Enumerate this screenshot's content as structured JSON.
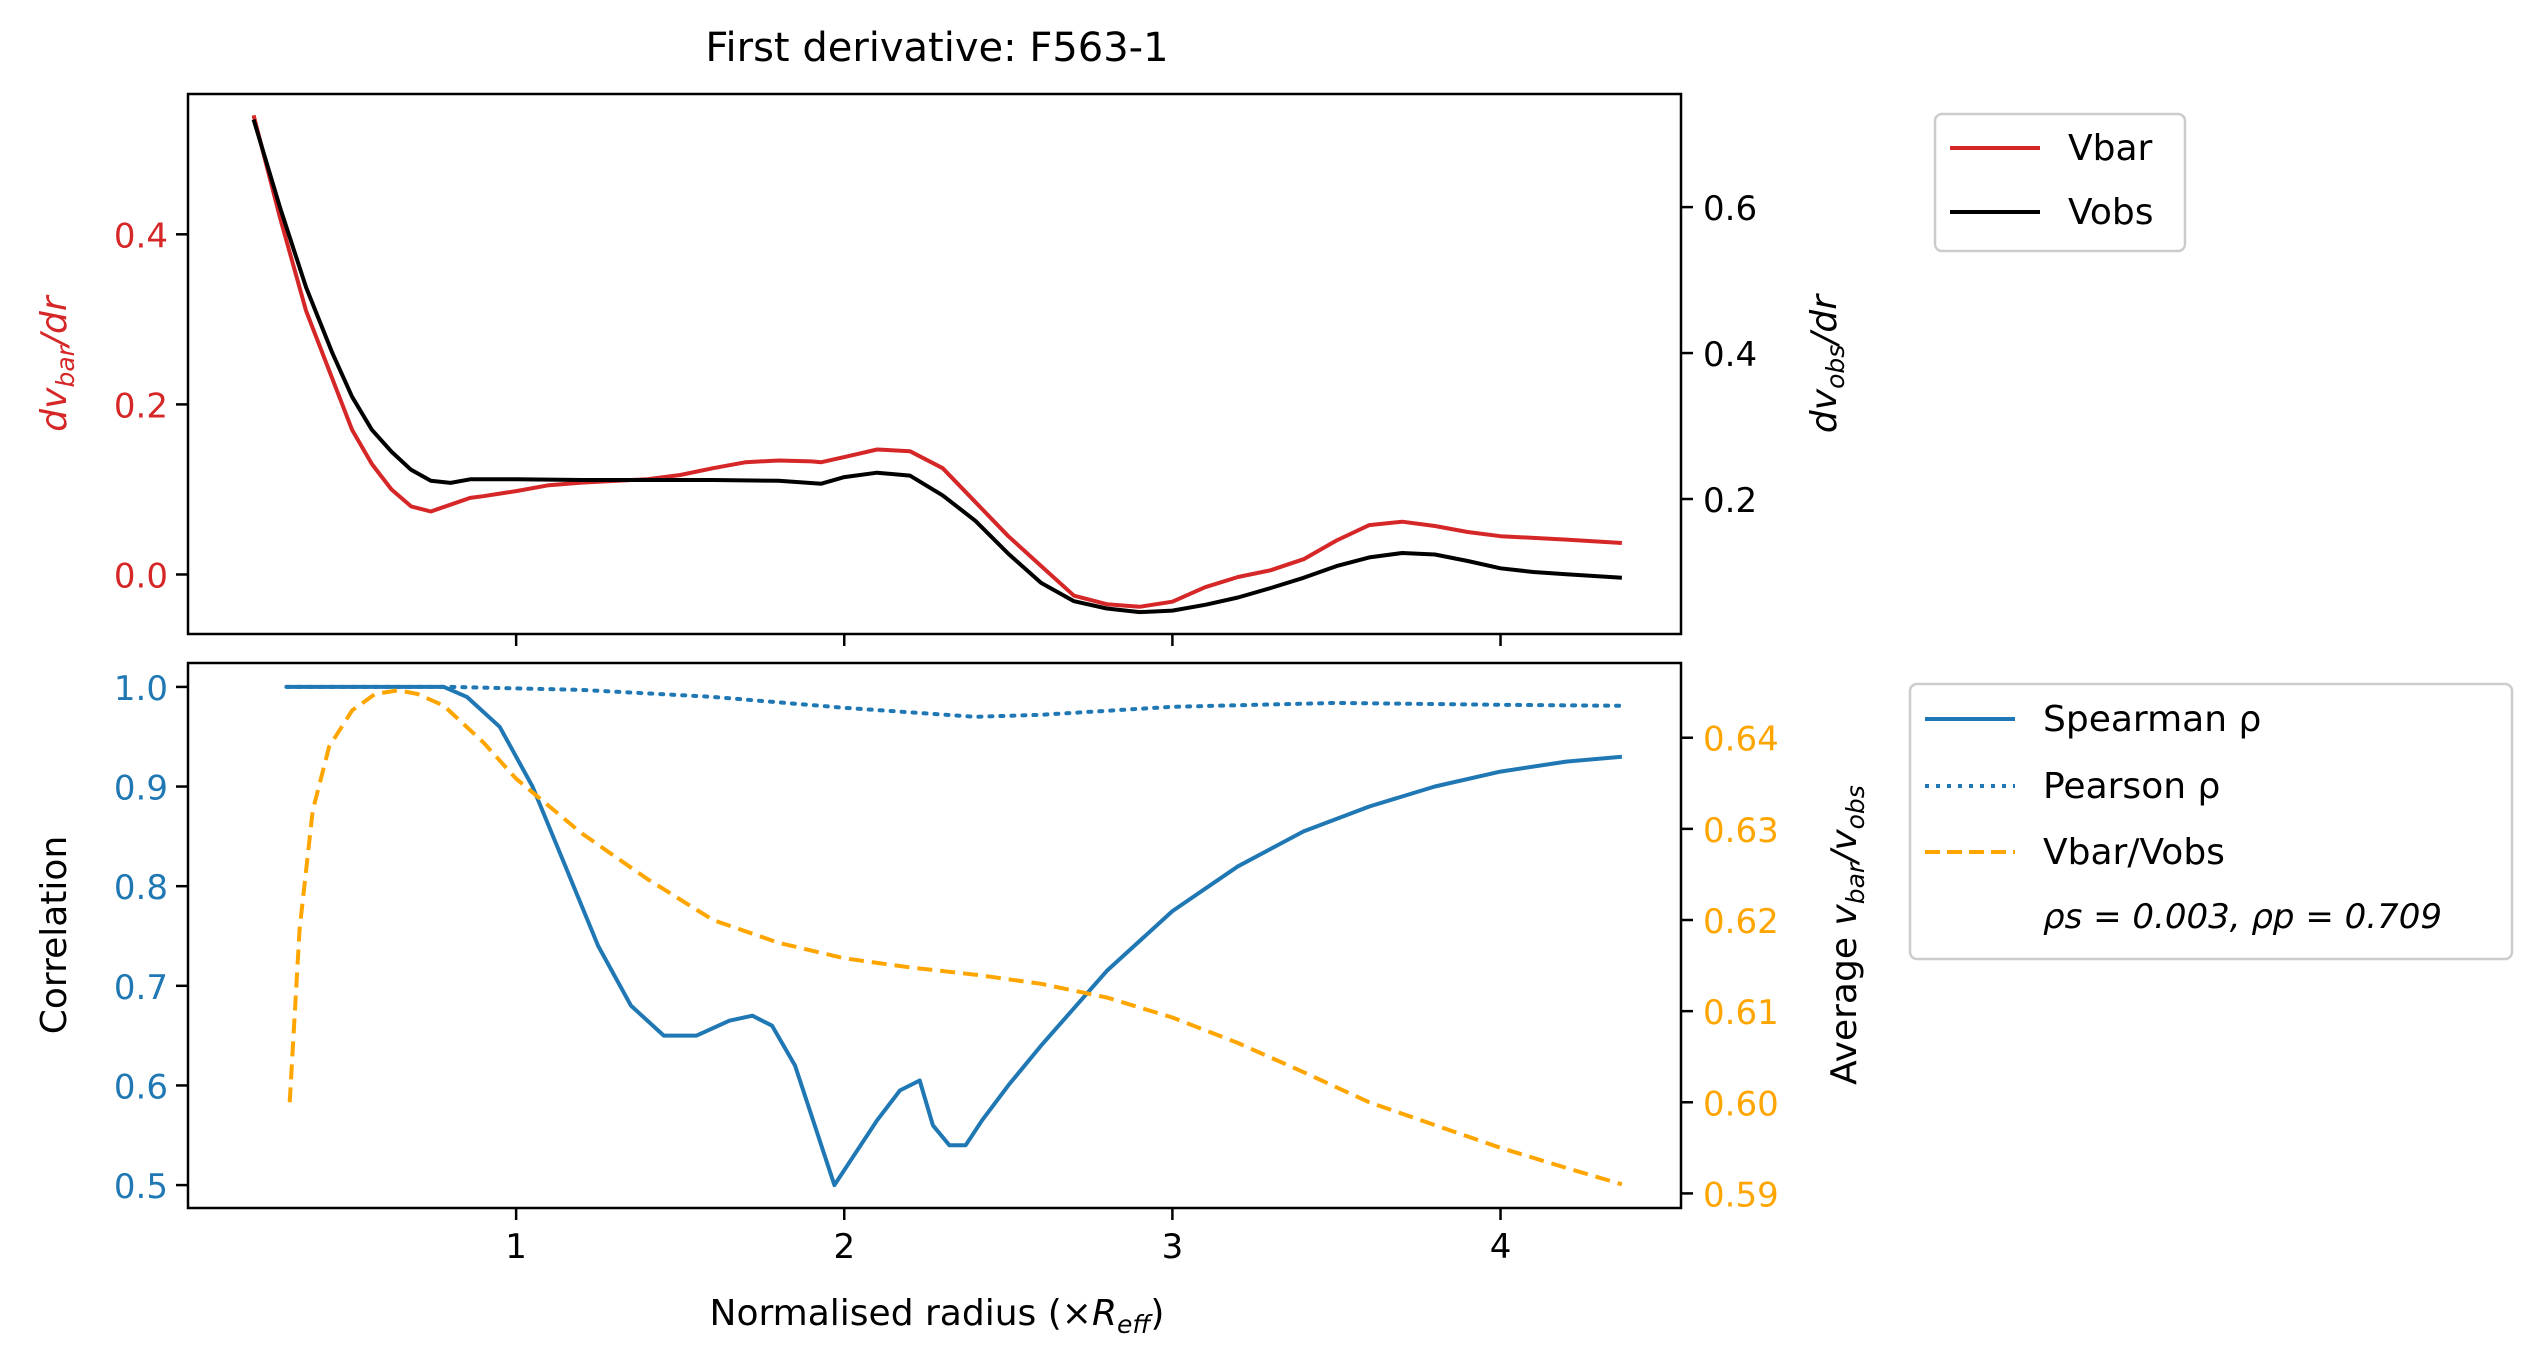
{
  "figure_title": "First derivative: F563-1",
  "colors": {
    "vbar": "#d62728",
    "vobs": "#000000",
    "spearman": "#1f77b4",
    "pearson": "#1f77b4",
    "ratio": "#ffa500",
    "axis": "#000000"
  },
  "top_legend": [
    "Vbar",
    "Vobs"
  ],
  "bottom_legend": {
    "entries": [
      "Spearman ρ",
      "Pearson ρ",
      "Vbar/Vobs"
    ],
    "stats_text": "ρs = 0.003, ρp = 0.709"
  },
  "chart_data": [
    {
      "type": "line",
      "title": "First derivative: F563-1",
      "xlim": [
        0,
        4.55
      ],
      "xticks": [
        1,
        2,
        3,
        4
      ],
      "left_axis": {
        "label": "dv_bar/dr",
        "ylim": [
          -0.07,
          0.565
        ],
        "ticks": [
          0.0,
          0.2,
          0.4
        ],
        "tick_labels": [
          "0.0",
          "0.2",
          "0.4"
        ]
      },
      "right_axis": {
        "label": "dv_obs/dr",
        "ylim": [
          0.015,
          0.755
        ],
        "ticks": [
          0.2,
          0.4,
          0.6
        ],
        "tick_labels": [
          "0.2",
          "0.4",
          "0.6"
        ]
      },
      "series": [
        {
          "name": "Vbar",
          "axis": "left",
          "x": [
            0.2,
            0.28,
            0.36,
            0.44,
            0.5,
            0.56,
            0.62,
            0.68,
            0.74,
            0.8,
            0.86,
            0.9,
            1.0,
            1.1,
            1.2,
            1.3,
            1.4,
            1.5,
            1.6,
            1.7,
            1.8,
            1.9,
            1.93,
            2.0,
            2.1,
            2.2,
            2.3,
            2.4,
            2.5,
            2.6,
            2.7,
            2.8,
            2.9,
            3.0,
            3.1,
            3.2,
            3.3,
            3.4,
            3.5,
            3.6,
            3.7,
            3.8,
            3.9,
            4.0,
            4.1,
            4.2,
            4.37
          ],
          "y": [
            0.54,
            0.42,
            0.31,
            0.23,
            0.17,
            0.13,
            0.1,
            0.08,
            0.074,
            0.082,
            0.09,
            0.092,
            0.098,
            0.105,
            0.108,
            0.11,
            0.112,
            0.117,
            0.125,
            0.132,
            0.134,
            0.133,
            0.132,
            0.138,
            0.147,
            0.145,
            0.125,
            0.085,
            0.045,
            0.01,
            -0.025,
            -0.035,
            -0.038,
            -0.032,
            -0.015,
            -0.003,
            0.005,
            0.018,
            0.04,
            0.058,
            0.062,
            0.057,
            0.05,
            0.045,
            0.043,
            0.041,
            0.037
          ]
        },
        {
          "name": "Vobs",
          "axis": "right",
          "x": [
            0.2,
            0.28,
            0.36,
            0.44,
            0.5,
            0.56,
            0.62,
            0.68,
            0.74,
            0.8,
            0.86,
            0.9,
            1.0,
            1.2,
            1.4,
            1.6,
            1.8,
            1.93,
            2.0,
            2.1,
            2.2,
            2.3,
            2.4,
            2.5,
            2.6,
            2.7,
            2.8,
            2.9,
            3.0,
            3.1,
            3.2,
            3.3,
            3.4,
            3.5,
            3.6,
            3.7,
            3.8,
            3.9,
            4.0,
            4.1,
            4.2,
            4.37
          ],
          "y": [
            0.72,
            0.6,
            0.49,
            0.4,
            0.34,
            0.295,
            0.265,
            0.24,
            0.225,
            0.222,
            0.227,
            0.227,
            0.227,
            0.226,
            0.226,
            0.226,
            0.225,
            0.221,
            0.23,
            0.236,
            0.232,
            0.205,
            0.17,
            0.125,
            0.085,
            0.06,
            0.05,
            0.045,
            0.047,
            0.055,
            0.065,
            0.078,
            0.092,
            0.108,
            0.12,
            0.126,
            0.124,
            0.115,
            0.105,
            0.1,
            0.097,
            0.092
          ]
        }
      ]
    },
    {
      "type": "line",
      "xlabel": "Normalised radius (×R_eff)",
      "xlim": [
        0,
        4.55
      ],
      "xticks": [
        1,
        2,
        3,
        4
      ],
      "xtick_labels": [
        "1",
        "2",
        "3",
        "4"
      ],
      "left_axis": {
        "label": "Correlation",
        "ylim": [
          0.477,
          1.024
        ],
        "ticks": [
          0.5,
          0.6,
          0.7,
          0.8,
          0.9,
          1.0
        ],
        "tick_labels": [
          "0.5",
          "0.6",
          "0.7",
          "0.8",
          "0.9",
          "1.0"
        ]
      },
      "right_axis": {
        "label": "Average v_bar/v_obs",
        "ylim": [
          0.5884,
          0.6482
        ],
        "ticks": [
          0.59,
          0.6,
          0.61,
          0.62,
          0.63,
          0.64
        ],
        "tick_labels": [
          "0.59",
          "0.60",
          "0.61",
          "0.62",
          "0.63",
          "0.64"
        ]
      },
      "series": [
        {
          "name": "Spearman ρ",
          "axis": "left",
          "style": "solid",
          "x": [
            0.3,
            0.5,
            0.78,
            0.85,
            0.95,
            1.05,
            1.15,
            1.25,
            1.35,
            1.45,
            1.55,
            1.65,
            1.72,
            1.78,
            1.85,
            1.92,
            1.97,
            2.03,
            2.1,
            2.17,
            2.23,
            2.27,
            2.32,
            2.37,
            2.42,
            2.5,
            2.6,
            2.8,
            3.0,
            3.2,
            3.4,
            3.6,
            3.8,
            4.0,
            4.2,
            4.37
          ],
          "y": [
            1.0,
            1.0,
            1.0,
            0.99,
            0.96,
            0.9,
            0.82,
            0.74,
            0.68,
            0.65,
            0.65,
            0.665,
            0.67,
            0.66,
            0.62,
            0.55,
            0.5,
            0.53,
            0.565,
            0.595,
            0.605,
            0.56,
            0.54,
            0.54,
            0.565,
            0.6,
            0.64,
            0.715,
            0.775,
            0.82,
            0.855,
            0.88,
            0.9,
            0.915,
            0.925,
            0.93
          ]
        },
        {
          "name": "Pearson ρ",
          "axis": "left",
          "style": "dotted",
          "x": [
            0.3,
            0.8,
            1.2,
            1.6,
            2.0,
            2.4,
            2.6,
            3.0,
            3.5,
            4.0,
            4.37
          ],
          "y": [
            1.0,
            1.0,
            0.997,
            0.99,
            0.979,
            0.97,
            0.972,
            0.98,
            0.984,
            0.982,
            0.981
          ]
        },
        {
          "name": "Vbar/Vobs",
          "axis": "right",
          "style": "dashed",
          "x": [
            0.31,
            0.34,
            0.38,
            0.43,
            0.5,
            0.57,
            0.64,
            0.7,
            0.78,
            0.9,
            1.0,
            1.2,
            1.4,
            1.6,
            1.8,
            2.0,
            2.2,
            2.4,
            2.6,
            2.8,
            3.0,
            3.2,
            3.4,
            3.6,
            3.8,
            4.0,
            4.2,
            4.37
          ],
          "y": [
            0.6,
            0.619,
            0.632,
            0.639,
            0.643,
            0.6448,
            0.6452,
            0.6448,
            0.6435,
            0.6395,
            0.6355,
            0.6295,
            0.6245,
            0.62,
            0.6175,
            0.6158,
            0.6148,
            0.614,
            0.613,
            0.6115,
            0.6093,
            0.6065,
            0.6033,
            0.6,
            0.5975,
            0.595,
            0.5928,
            0.591
          ]
        }
      ]
    }
  ]
}
